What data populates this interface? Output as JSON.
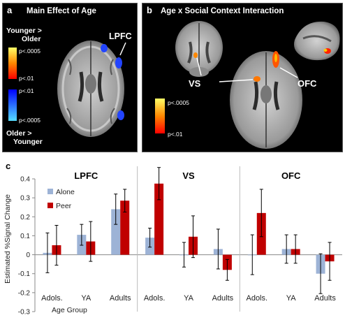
{
  "panel_a": {
    "letter": "a",
    "title": "Main Effect of Age",
    "region_label": "LPFC",
    "scale_top_label": [
      "Younger >",
      "Older"
    ],
    "scale_bottom_label": [
      "Older >",
      "Younger"
    ],
    "scale_ticks": [
      "p<.0005",
      "p<.01",
      "p<.01",
      "p<.0005"
    ]
  },
  "panel_b": {
    "letter": "b",
    "title": "Age x Social Context Interaction",
    "region_labels": [
      "VS",
      "OFC"
    ],
    "scale_ticks": [
      "p<.0005",
      "p<.01"
    ]
  },
  "panel_c": {
    "letter": "c",
    "ylabel": "Estimated %Signal Change",
    "xlabel": "Age Group"
  },
  "colors": {
    "alone": "#9db3d6",
    "peer": "#c00000",
    "active_warm": "#ff6600",
    "active_cool": "#2244ff"
  },
  "chart_data": {
    "type": "bar",
    "ylim": [
      -0.3,
      0.4
    ],
    "yticks": [
      "0.4",
      "0.3",
      "0.2",
      "0.1",
      "0",
      "-0.1",
      "-0.2",
      "-0.3"
    ],
    "ytick_values": [
      0.4,
      0.3,
      0.2,
      0.1,
      0,
      -0.1,
      -0.2,
      -0.3
    ],
    "categories": [
      "Adols.",
      "YA",
      "Adults"
    ],
    "legend": [
      "Alone",
      "Peer"
    ],
    "subplots": [
      {
        "title": "LPFC",
        "series": [
          {
            "name": "Alone",
            "values": [
              0.01,
              0.105,
              0.24
            ],
            "err": [
              0.105,
              0.055,
              0.08
            ]
          },
          {
            "name": "Peer",
            "values": [
              0.05,
              0.07,
              0.285
            ],
            "err": [
              0.105,
              0.105,
              0.06
            ]
          }
        ]
      },
      {
        "title": "VS",
        "series": [
          {
            "name": "Alone",
            "values": [
              0.09,
              0.0,
              0.03
            ],
            "err": [
              0.05,
              0.065,
              0.105
            ]
          },
          {
            "name": "Peer",
            "values": [
              0.375,
              0.095,
              -0.08
            ],
            "err": [
              0.085,
              0.11,
              0.055
            ]
          }
        ]
      },
      {
        "title": "OFC",
        "series": [
          {
            "name": "Alone",
            "values": [
              0.0,
              0.03,
              -0.1
            ],
            "err": [
              0.105,
              0.075,
              0.105
            ]
          },
          {
            "name": "Peer",
            "values": [
              0.22,
              0.03,
              -0.035
            ],
            "err": [
              0.125,
              0.075,
              0.1
            ]
          }
        ]
      }
    ]
  }
}
